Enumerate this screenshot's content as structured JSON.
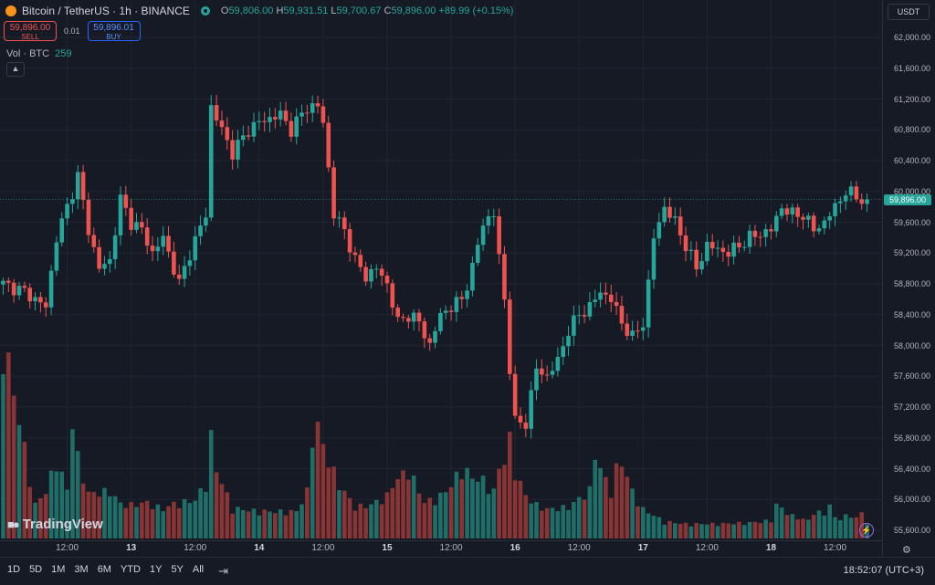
{
  "legend": {
    "symbol": "Bitcoin / TetherUS",
    "interval": "1h",
    "exchange": "BINANCE",
    "open_label": "O",
    "open": "59,806.00",
    "high_label": "H",
    "high": "59,931.51",
    "low_label": "L",
    "low": "59,700.67",
    "close_label": "C",
    "close": "59,896.00",
    "change": "+89.99 (+0.15%)"
  },
  "trade": {
    "sell_price": "59,896.00",
    "sell_label": "SELL",
    "spread": "0.01",
    "buy_price": "59,896.01",
    "buy_label": "BUY"
  },
  "volume_indicator": {
    "label": "Vol · BTC",
    "value": "259"
  },
  "currency": "USDT",
  "current_price_label": "59,896.00",
  "brand": "TradingView",
  "timeframes": [
    "1D",
    "5D",
    "1M",
    "3M",
    "6M",
    "YTD",
    "1Y",
    "5Y",
    "All"
  ],
  "clock": "18:52:07 (UTC+3)",
  "colors": {
    "up": "#26a69a",
    "down": "#ef5350",
    "up_volume": "#1f6f68",
    "down_volume": "#8a3535",
    "background": "#161a25",
    "grid": "#212531"
  },
  "icons": [
    "bitcoin-icon",
    "chevron-up-icon",
    "calendar-range-icon",
    "gear-icon",
    "bolt-icon",
    "tradingview-logo-icon"
  ],
  "chart_data": {
    "type": "candlestick",
    "price_ticks": [
      "62,000.00",
      "61,600.00",
      "61,200.00",
      "60,800.00",
      "60,400.00",
      "60,000.00",
      "59,600.00",
      "59,200.00",
      "58,800.00",
      "58,400.00",
      "58,000.00",
      "57,600.00",
      "57,200.00",
      "56,800.00",
      "56,400.00",
      "56,000.00",
      "55,600.00"
    ],
    "price_tick_values": [
      62000,
      61600,
      61200,
      60800,
      60400,
      60000,
      59600,
      59200,
      58800,
      58400,
      58000,
      57600,
      57200,
      56800,
      56400,
      56000,
      55600
    ],
    "ylim": [
      55500,
      62200
    ],
    "time_ticks": [
      {
        "label": "12:00",
        "hour": 12,
        "day": false
      },
      {
        "label": "13",
        "hour": 24,
        "day": true
      },
      {
        "label": "12:00",
        "hour": 36,
        "day": false
      },
      {
        "label": "14",
        "hour": 48,
        "day": true
      },
      {
        "label": "12:00",
        "hour": 60,
        "day": false
      },
      {
        "label": "15",
        "hour": 72,
        "day": true
      },
      {
        "label": "12:00",
        "hour": 84,
        "day": false
      },
      {
        "label": "16",
        "hour": 96,
        "day": true
      },
      {
        "label": "12:00",
        "hour": 108,
        "day": false
      },
      {
        "label": "17",
        "hour": 120,
        "day": true
      },
      {
        "label": "12:00",
        "hour": 132,
        "day": false
      },
      {
        "label": "18",
        "hour": 144,
        "day": true
      },
      {
        "label": "12:00",
        "hour": 156,
        "day": false
      }
    ],
    "close_anchors": [
      [
        0,
        58800
      ],
      [
        4,
        58700
      ],
      [
        8,
        58500
      ],
      [
        10,
        59400
      ],
      [
        12,
        59800
      ],
      [
        14,
        60200
      ],
      [
        16,
        59500
      ],
      [
        18,
        59000
      ],
      [
        20,
        59100
      ],
      [
        22,
        59900
      ],
      [
        24,
        59600
      ],
      [
        26,
        59500
      ],
      [
        28,
        59200
      ],
      [
        30,
        59400
      ],
      [
        33,
        58800
      ],
      [
        35,
        59200
      ],
      [
        38,
        59700
      ],
      [
        39,
        61100
      ],
      [
        41,
        60800
      ],
      [
        43,
        60500
      ],
      [
        46,
        60800
      ],
      [
        48,
        60900
      ],
      [
        52,
        61000
      ],
      [
        54,
        60800
      ],
      [
        57,
        61100
      ],
      [
        59,
        61100
      ],
      [
        60,
        60900
      ],
      [
        62,
        59700
      ],
      [
        64,
        59500
      ],
      [
        66,
        59100
      ],
      [
        68,
        58900
      ],
      [
        70,
        59000
      ],
      [
        72,
        58800
      ],
      [
        74,
        58300
      ],
      [
        76,
        58400
      ],
      [
        78,
        58300
      ],
      [
        80,
        58000
      ],
      [
        82,
        58400
      ],
      [
        84,
        58500
      ],
      [
        86,
        58600
      ],
      [
        88,
        59000
      ],
      [
        90,
        59600
      ],
      [
        92,
        59700
      ],
      [
        94,
        58600
      ],
      [
        95,
        57700
      ],
      [
        96,
        57000
      ],
      [
        98,
        57000
      ],
      [
        100,
        57700
      ],
      [
        102,
        57600
      ],
      [
        104,
        57800
      ],
      [
        106,
        58200
      ],
      [
        108,
        58400
      ],
      [
        110,
        58500
      ],
      [
        112,
        58700
      ],
      [
        114,
        58600
      ],
      [
        116,
        58300
      ],
      [
        118,
        58100
      ],
      [
        120,
        58300
      ],
      [
        121,
        58800
      ],
      [
        122,
        59400
      ],
      [
        124,
        59800
      ],
      [
        126,
        59600
      ],
      [
        128,
        59300
      ],
      [
        130,
        59000
      ],
      [
        132,
        59300
      ],
      [
        136,
        59200
      ],
      [
        140,
        59400
      ],
      [
        144,
        59500
      ],
      [
        146,
        59800
      ],
      [
        148,
        59700
      ],
      [
        150,
        59700
      ],
      [
        152,
        59500
      ],
      [
        154,
        59600
      ],
      [
        156,
        59800
      ],
      [
        158,
        60000
      ],
      [
        161,
        59900
      ],
      [
        162,
        59896
      ]
    ],
    "volume_axis_max": 1200,
    "volume_bars": [
      [
        5,
        550
      ],
      [
        6,
        300
      ],
      [
        8,
        420
      ],
      [
        10,
        700
      ],
      [
        12,
        430
      ],
      [
        13,
        1050
      ],
      [
        14,
        720
      ],
      [
        16,
        400
      ],
      [
        20,
        420
      ],
      [
        22,
        310
      ],
      [
        24,
        300
      ],
      [
        27,
        320
      ],
      [
        30,
        260
      ],
      [
        32,
        310
      ],
      [
        36,
        340
      ],
      [
        38,
        500
      ],
      [
        39,
        900
      ],
      [
        40,
        610
      ],
      [
        43,
        270
      ],
      [
        46,
        250
      ],
      [
        50,
        240
      ],
      [
        55,
        240
      ],
      [
        57,
        420
      ],
      [
        58,
        920
      ],
      [
        59,
        1000
      ],
      [
        60,
        820
      ],
      [
        61,
        700
      ],
      [
        63,
        480
      ],
      [
        66,
        280
      ],
      [
        69,
        300
      ],
      [
        72,
        380
      ],
      [
        73,
        480
      ],
      [
        76,
        620
      ],
      [
        79,
        320
      ],
      [
        82,
        380
      ],
      [
        84,
        470
      ],
      [
        86,
        640
      ],
      [
        88,
        540
      ],
      [
        90,
        520
      ],
      [
        92,
        420
      ],
      [
        93,
        620
      ],
      [
        94,
        700
      ],
      [
        95,
        880
      ],
      [
        96,
        600
      ],
      [
        98,
        380
      ],
      [
        100,
        300
      ],
      [
        102,
        260
      ],
      [
        106,
        280
      ],
      [
        110,
        430
      ],
      [
        111,
        760
      ],
      [
        112,
        620
      ],
      [
        114,
        420
      ],
      [
        115,
        620
      ],
      [
        116,
        680
      ],
      [
        118,
        420
      ],
      [
        120,
        260
      ],
      [
        124,
        150
      ],
      [
        128,
        130
      ],
      [
        134,
        130
      ],
      [
        140,
        140
      ],
      [
        144,
        160
      ],
      [
        145,
        300
      ],
      [
        148,
        200
      ],
      [
        151,
        160
      ],
      [
        152,
        240
      ],
      [
        154,
        220
      ],
      [
        155,
        300
      ],
      [
        156,
        180
      ],
      [
        158,
        200
      ],
      [
        160,
        190
      ],
      [
        161,
        220
      ],
      [
        162,
        150
      ]
    ]
  }
}
